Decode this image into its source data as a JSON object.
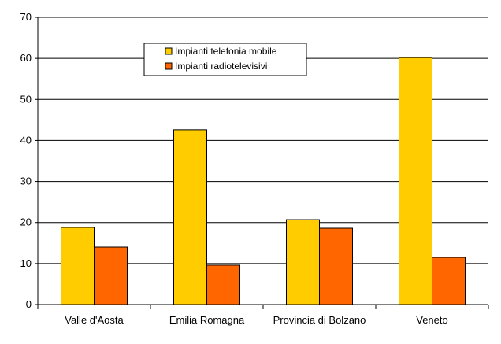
{
  "chart_data": {
    "type": "bar",
    "categories": [
      "Valle d'Aosta",
      "Emilia Romagna",
      "Provincia di Bolzano",
      "Veneto"
    ],
    "series": [
      {
        "name": "Impianti telefonia mobile",
        "color": "#FFCC00",
        "values": [
          18.8,
          42.6,
          20.7,
          60.2
        ]
      },
      {
        "name": "Impianti radiotelevisivi",
        "color": "#FF6600",
        "values": [
          14.0,
          9.6,
          18.6,
          11.5
        ]
      }
    ],
    "yticks": [
      0,
      10,
      20,
      30,
      40,
      50,
      60,
      70
    ],
    "ylim": [
      0,
      70
    ],
    "grid": true,
    "legend_position": "top-center"
  }
}
